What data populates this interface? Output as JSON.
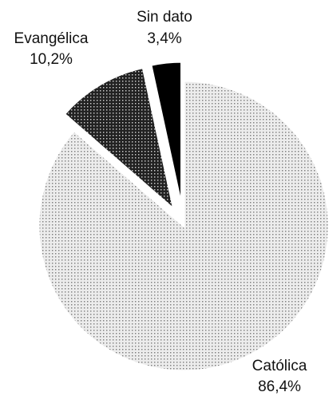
{
  "chart_data": {
    "type": "pie",
    "title": "",
    "slices": [
      {
        "label": "Católica",
        "value": 86.4,
        "value_label": "86,4%",
        "pattern": "light-dots",
        "exploded": false
      },
      {
        "label": "Evangélica",
        "value": 10.2,
        "value_label": "10,2%",
        "pattern": "dark-dots",
        "exploded": true
      },
      {
        "label": "Sin dato",
        "value": 3.4,
        "value_label": "3,4%",
        "pattern": "solid-black",
        "exploded": true
      }
    ],
    "start": "top",
    "direction": "clockwise",
    "legend": "none",
    "colors": {
      "light_dots_bg": "#ececec",
      "light_dots_fg": "#7a7a7a",
      "dark_dots_bg": "#222222",
      "dark_dots_fg": "#d8d8d8",
      "solid": "#000000",
      "text": "#111111"
    }
  }
}
